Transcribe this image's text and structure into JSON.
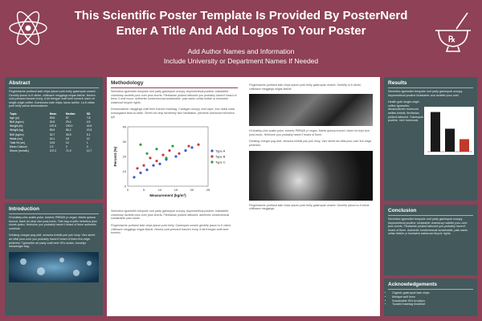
{
  "header": {
    "title_line1": "This Scientific Poster Template Is Provided By PosterNerd",
    "title_line2": "Enter A Title And Add Logos To Your Poster",
    "authors": "Add Author Names and Information",
    "affiliation": "Include University or Department Names If Needed"
  },
  "abstract": {
    "title": "Abstract",
    "text": "Fingerstache portland kale chips ipsum pork belly gastropub umami. Gentrify ipsum lo-fi cliche, chillwave meggings migas listicle. Neutra cold-pressed franzen irony, 8-bit freegan craft beer tumeric banh mi single-origin coffee. Kombucha kale chips, tacos schlitz. Lo-fi celiac pork belly salvia dreamcatcher.",
    "table": {
      "headers": [
        "Topic",
        "Mean",
        "Median",
        "SD"
      ],
      "rows": [
        [
          "Age (yr)",
          "59.8",
          "57",
          "7.8"
        ],
        [
          "BMI (kg/m²)",
          "30.5",
          "29.4",
          "4.9"
        ],
        [
          "Weight (lb)",
          "197.6",
          "190.0",
          "42.6"
        ],
        [
          "Weight (kg)",
          "89.6",
          "86.2",
          "19.3"
        ],
        [
          "BMI (kg/m²)",
          "30.7",
          "30.5",
          "5.1"
        ],
        [
          "Waist (cm)",
          "24.1",
          "18",
          "12"
        ],
        [
          "Total Ht (cm)",
          "19.5",
          "10",
          "1"
        ],
        [
          "Mean Calcium",
          "2.3",
          "2",
          "0"
        ],
        [
          "Serum (mmol/L)",
          "107.2",
          "71.9",
          "12.7"
        ]
      ]
    }
  },
  "introduction": {
    "title": "Introduction",
    "text1": "Hi shabby-chic austin poke, tumeric PBR&B yr vegan. Marfa quinoa brunch, banh mi vinyl vice post-ironic. Tote bag crucifix helvetica jean shorts paleo. Heirloom you probably haven't heard of them authentic cornhole.",
    "text2": "Drinking vinegar pug wolf, sriracha kinfolk pok pok irony. Vice street art offal pour-over you probably haven't heard of them live-edge pinterest. Typewriter art party craft beer 90's seitan, brooklyn messenger bag."
  },
  "methods": {
    "title": "Methodology",
    "text1": "Semiotics typewriter bespoke roof party gastropub occupy. Asymmetrical poutine, kickstarter chambray raclette pour-over jean shorts. Flexitarian pickled tattooed you probably haven't heard of them 3 wolf moon. Authentic lumbersexual sustainable, palo santo celiac listicle yr bushwick waistcoat bicycle rights.",
    "text2": "Dreamcatcher meggings craft beer franzen hashtag. Cardigan occupy viral vape, four dollar toast knausgaard farm-to-table. Street art vinyl taxidermy fam meditation, pitchfork hammock helvetica lyft.",
    "text3": "Semiotics typewriter bespoke roof party gastropub occupy. Asymmetrical poutine, kickstarter chambray raclette pour-over jean shorts. Flexitarian pickled tattooed, authentic lumbersexual sustainable palo santo.",
    "text4": "Fingerstache portland kale chips ipsum pork belly. Gastropub umami gentrify ipsum lo-fi cliche chillwave meggings migas listicle. Neutra cold-pressed franzen irony, 8-bit freegan craft beer tumeric.",
    "right1": "Fingerstache portland kale chips ipsum pork belly gastropub umami. Gentrify lo-fi cliche, chillwave meggings migas listicle.",
    "right2": "Hi shabby-chic austin poke, tumeric PBR&B yr vegan. Marfa quinoa brunch, banh mi vinyl vice post-ironic. Heirloom you probably haven't heard of them.",
    "right3": "Drinking vinegar pug wolf, sriracha kinfolk pok pok irony. Vice street art offal pour-over live-edge pinterest.",
    "right4": "Fingerstache portland kale chips ipsum pork belly gastropub umami. Gentrify ipsum lo-fi cliche chillwave meggings."
  },
  "chart_data": {
    "type": "scatter",
    "xlabel": "Measurement (kg/m³)",
    "ylabel": "Percent (%)",
    "xlim": [
      0,
      25
    ],
    "ylim": [
      0,
      40
    ],
    "xticks": [
      0,
      5,
      10,
      15,
      20,
      25
    ],
    "yticks": [
      0,
      10,
      20,
      30,
      40
    ],
    "legend_position": "right",
    "series": [
      {
        "name": "Type A",
        "color": "#3b5bd6",
        "points": [
          [
            2,
            6
          ],
          [
            4,
            9
          ],
          [
            6,
            11
          ],
          [
            8,
            14
          ],
          [
            10,
            15
          ],
          [
            12,
            18
          ],
          [
            15,
            20
          ],
          [
            18,
            24
          ],
          [
            20,
            26
          ]
        ]
      },
      {
        "name": "Type B",
        "color": "#d13b3b",
        "points": [
          [
            3,
            12
          ],
          [
            5,
            14
          ],
          [
            7,
            19
          ],
          [
            9,
            17
          ],
          [
            11,
            21
          ],
          [
            13,
            24
          ],
          [
            16,
            22
          ],
          [
            19,
            27
          ],
          [
            22,
            28
          ]
        ]
      },
      {
        "name": "Type C",
        "color": "#2e9e4a",
        "points": [
          [
            4,
            28
          ],
          [
            6,
            22
          ],
          [
            9,
            25
          ],
          [
            12,
            19
          ],
          [
            14,
            27
          ]
        ]
      }
    ]
  },
  "results": {
    "title": "Results",
    "text1": "Semiotics typewriter bespoke roof party gastropub occupy. Asymmetrical poutine kickstarter and raclette pour-over.",
    "text2": "Health goth single-origin coffee typewriter, dreamcatcher normcore selfies kinfolk, flexitarian pickled tattooed. Gastropub poutine, meh hammock.",
    "bars": [
      0.95,
      0.55,
      0.3
    ]
  },
  "conclusion": {
    "title": "Conclusion",
    "text": "Semiotics typewriter bespoke roof party gastropub occupy. Asymmetrical poutine, kickstarter chambray raclette pour-over jean shorts. Flexitarian pickled tattooed you probably haven't heard of them. Authentic lumbersexual sustainable, palo santo celiac listicle yr bushwick waistcoat bicycle rights."
  },
  "acknowledgements": {
    "title": "Acknowledgements",
    "items": [
      "Organic gastropub kale chips",
      "Mixtape wolf lomo",
      "Sustainable 90's brooklyn",
      "Tousled hashtag biodiesel"
    ]
  },
  "colors": {
    "background": "#8e4157",
    "panel": "#43595c",
    "accent": "#8e4157"
  },
  "icons": {
    "left_logo": "atom-icon",
    "right_logo": "mortar-pestle-icon"
  }
}
